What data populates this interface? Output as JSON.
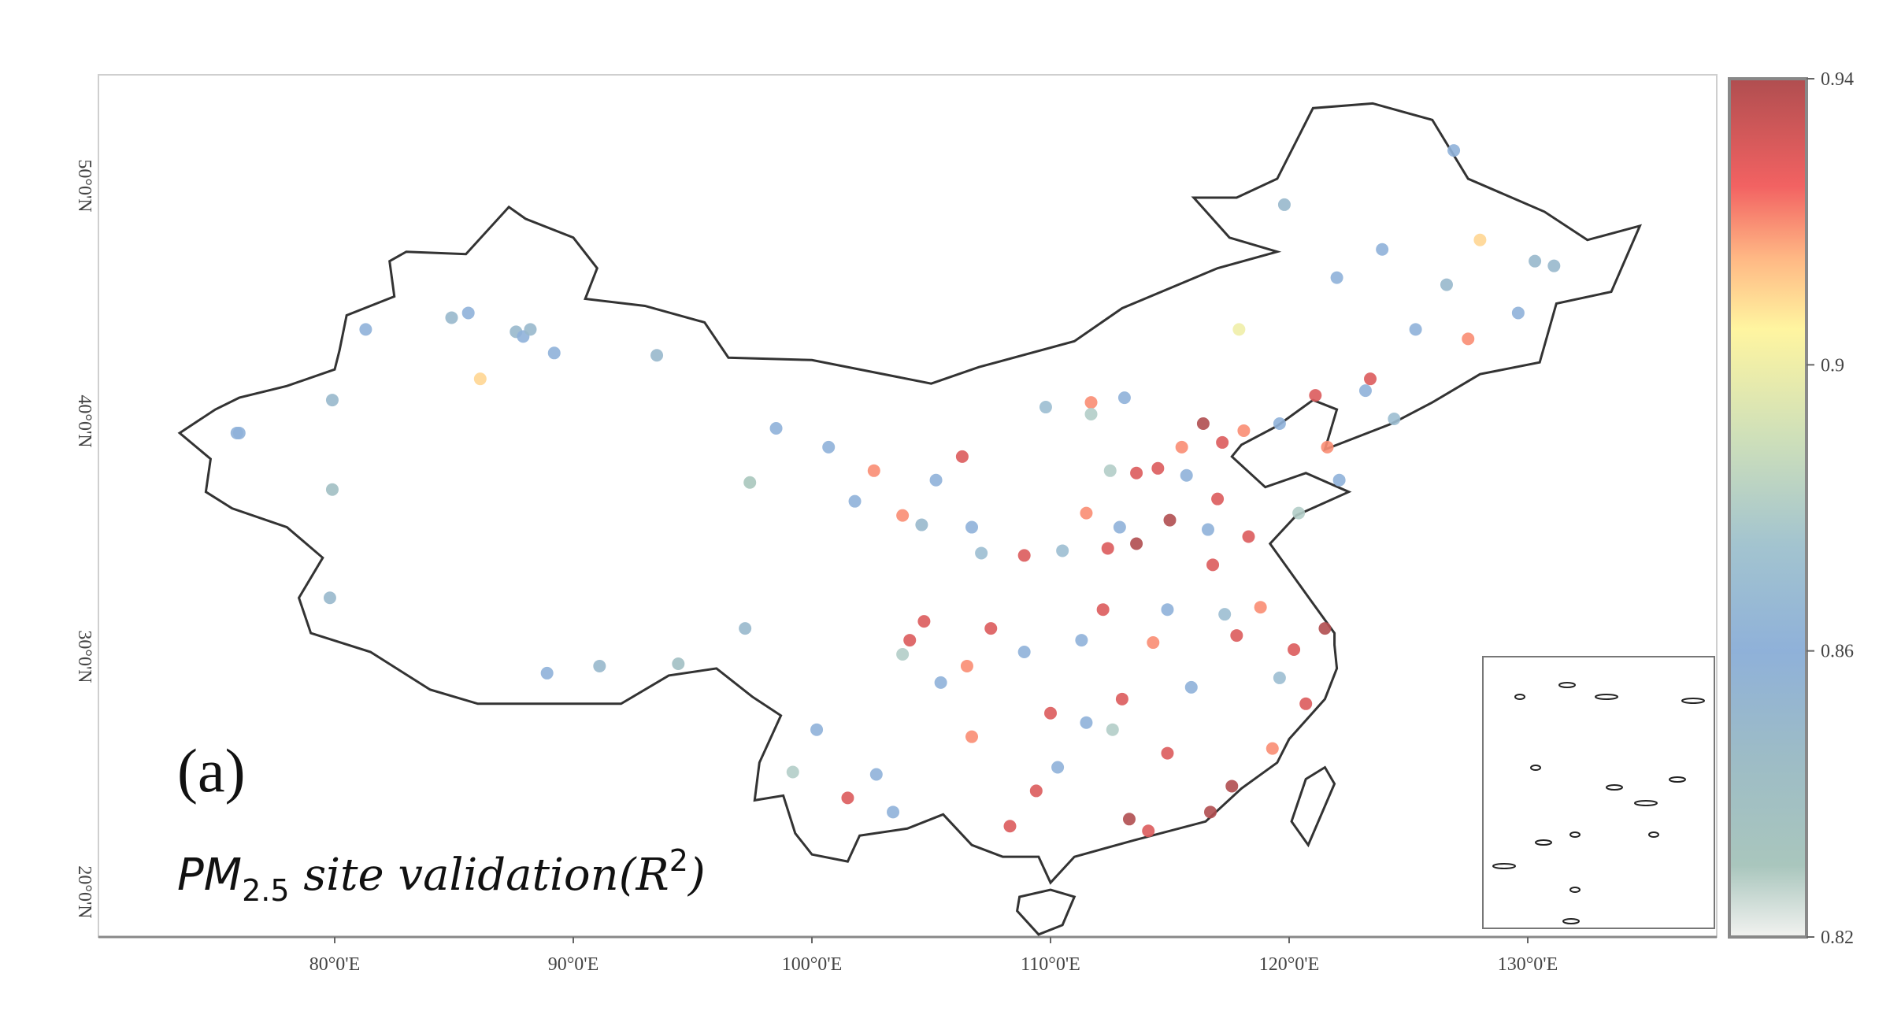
{
  "panel_label": "(a)",
  "title": {
    "main": "PM",
    "sub": "2.5",
    "rest": " site validation(R",
    "sup": "2",
    "close": ")"
  },
  "lon_ticks": [
    {
      "value": 80,
      "label": "80°0'E"
    },
    {
      "value": 90,
      "label": "90°0'E"
    },
    {
      "value": 100,
      "label": "100°0'E"
    },
    {
      "value": 110,
      "label": "110°0'E"
    },
    {
      "value": 120,
      "label": "120°0'E"
    },
    {
      "value": 130,
      "label": "130°0'E"
    }
  ],
  "lat_ticks": [
    {
      "value": 20,
      "label": "20°0'N"
    },
    {
      "value": 30,
      "label": "30°0'N"
    },
    {
      "value": 40,
      "label": "40°0'N"
    },
    {
      "value": 50,
      "label": "50°0'N"
    }
  ],
  "extent": {
    "lon": [
      70.5,
      138.5
    ],
    "lat": [
      18.8,
      53.9
    ]
  },
  "colorbar": {
    "min": 0.82,
    "max": 0.94,
    "ticks": [
      {
        "value": 0.94,
        "label": "0.94"
      },
      {
        "value": 0.9,
        "label": "0.9"
      },
      {
        "value": 0.86,
        "label": "0.86"
      },
      {
        "value": 0.82,
        "label": "0.82"
      }
    ],
    "stops": [
      [
        0.82,
        "#f2f2f0"
      ],
      [
        0.83,
        "#a9c6bd"
      ],
      [
        0.845,
        "#9dbcc6"
      ],
      [
        0.86,
        "#8fb1d9"
      ],
      [
        0.875,
        "#a3c4cf"
      ],
      [
        0.89,
        "#cfe0b9"
      ],
      [
        0.905,
        "#fff5a0"
      ],
      [
        0.915,
        "#ffb784"
      ],
      [
        0.925,
        "#f26262"
      ],
      [
        0.94,
        "#b04e50"
      ]
    ]
  },
  "sites": [
    [
      76,
      39.5,
      0.86
    ],
    [
      79.9,
      40.9,
      0.85
    ],
    [
      81.3,
      43.9,
      0.86
    ],
    [
      84.9,
      44.4,
      0.85
    ],
    [
      85.6,
      44.6,
      0.86
    ],
    [
      87.6,
      43.8,
      0.85
    ],
    [
      87.9,
      43.6,
      0.86
    ],
    [
      88.2,
      43.9,
      0.85
    ],
    [
      89.2,
      42.9,
      0.86
    ],
    [
      86.1,
      41.8,
      0.91
    ],
    [
      93.5,
      42.8,
      0.85
    ],
    [
      79.9,
      37.1,
      0.84
    ],
    [
      75.9,
      39.5,
      0.86
    ],
    [
      79.8,
      32.5,
      0.85
    ],
    [
      91.1,
      29.6,
      0.85
    ],
    [
      88.9,
      29.3,
      0.86
    ],
    [
      94.4,
      29.7,
      0.84
    ],
    [
      97.2,
      31.2,
      0.85
    ],
    [
      101.8,
      36.6,
      0.86
    ],
    [
      97.4,
      37.4,
      0.83
    ],
    [
      98.5,
      39.7,
      0.86
    ],
    [
      103.8,
      36,
      0.92
    ],
    [
      106.3,
      38.5,
      0.93
    ],
    [
      109.8,
      40.6,
      0.87
    ],
    [
      111.7,
      40.8,
      0.92
    ],
    [
      105.2,
      37.5,
      0.86
    ],
    [
      116.4,
      39.9,
      0.94
    ],
    [
      117.2,
      39.1,
      0.93
    ],
    [
      114.5,
      38,
      0.93
    ],
    [
      115.5,
      38.9,
      0.92
    ],
    [
      112.5,
      37.9,
      0.88
    ],
    [
      113.6,
      34.8,
      0.94
    ],
    [
      117,
      36.7,
      0.93
    ],
    [
      118.8,
      32.1,
      0.92
    ],
    [
      120.2,
      30.3,
      0.93
    ],
    [
      121.5,
      31.2,
      0.94
    ],
    [
      117.3,
      31.8,
      0.87
    ],
    [
      114.3,
      30.6,
      0.92
    ],
    [
      113,
      28.2,
      0.93
    ],
    [
      115.9,
      28.7,
      0.86
    ],
    [
      119.3,
      26.1,
      0.92
    ],
    [
      113.3,
      23.1,
      0.94
    ],
    [
      114.1,
      22.6,
      0.93
    ],
    [
      110.3,
      25.3,
      0.86
    ],
    [
      108.3,
      22.8,
      0.93
    ],
    [
      106.7,
      26.6,
      0.92
    ],
    [
      102.7,
      25,
      0.86
    ],
    [
      104.1,
      30.7,
      0.93
    ],
    [
      106.5,
      29.6,
      0.92
    ],
    [
      103.8,
      30.1,
      0.88
    ],
    [
      105.4,
      28.9,
      0.86
    ],
    [
      104.7,
      31.5,
      0.93
    ],
    [
      108.9,
      34.3,
      0.93
    ],
    [
      107.1,
      34.4,
      0.87
    ],
    [
      111.5,
      36.1,
      0.92
    ],
    [
      112.9,
      35.5,
      0.86
    ],
    [
      115,
      35.8,
      0.94
    ],
    [
      116.6,
      35.4,
      0.86
    ],
    [
      118.3,
      35.1,
      0.93
    ],
    [
      120.4,
      36.1,
      0.88
    ],
    [
      122.1,
      37.5,
      0.86
    ],
    [
      123.4,
      41.8,
      0.93
    ],
    [
      121.6,
      38.9,
      0.92
    ],
    [
      125.3,
      43.9,
      0.86
    ],
    [
      126.6,
      45.8,
      0.85
    ],
    [
      123.9,
      47.3,
      0.86
    ],
    [
      129.6,
      44.6,
      0.86
    ],
    [
      130.3,
      46.8,
      0.85
    ],
    [
      124.4,
      40.1,
      0.87
    ],
    [
      122,
      46.1,
      0.86
    ],
    [
      119.8,
      49.2,
      0.85
    ],
    [
      126.9,
      51.5,
      0.86
    ],
    [
      128,
      47.7,
      0.91
    ],
    [
      131.1,
      46.6,
      0.85
    ],
    [
      117.9,
      43.9,
      0.9
    ],
    [
      111.7,
      40.3,
      0.88
    ],
    [
      113.1,
      41,
      0.86
    ],
    [
      110,
      27.6,
      0.93
    ],
    [
      111.3,
      30.7,
      0.86
    ],
    [
      112.2,
      32,
      0.93
    ],
    [
      114.9,
      32,
      0.86
    ],
    [
      116.8,
      33.9,
      0.93
    ],
    [
      108.9,
      30.2,
      0.86
    ],
    [
      107.5,
      31.2,
      0.93
    ],
    [
      100.2,
      26.9,
      0.86
    ],
    [
      99.2,
      25.1,
      0.88
    ],
    [
      101.5,
      24,
      0.93
    ],
    [
      103.4,
      23.4,
      0.86
    ],
    [
      109.4,
      24.3,
      0.93
    ],
    [
      111.5,
      27.2,
      0.86
    ],
    [
      112.6,
      26.9,
      0.88
    ],
    [
      114.9,
      25.9,
      0.93
    ],
    [
      117.6,
      24.5,
      0.94
    ],
    [
      116.7,
      23.4,
      0.94
    ],
    [
      120.7,
      28,
      0.93
    ],
    [
      119.6,
      29.1,
      0.87
    ],
    [
      104.6,
      35.6,
      0.85
    ],
    [
      100.7,
      38.9,
      0.86
    ],
    [
      102.6,
      37.9,
      0.92
    ],
    [
      106.7,
      35.5,
      0.86
    ],
    [
      110.5,
      34.5,
      0.87
    ],
    [
      113.6,
      37.8,
      0.93
    ],
    [
      115.7,
      37.7,
      0.86
    ],
    [
      117.8,
      30.9,
      0.93
    ],
    [
      112.4,
      34.6,
      0.93
    ],
    [
      118.1,
      39.6,
      0.92
    ],
    [
      119.6,
      39.9,
      0.86
    ],
    [
      121.1,
      41.1,
      0.93
    ],
    [
      123.2,
      41.3,
      0.86
    ],
    [
      127.5,
      43.5,
      0.92
    ]
  ]
}
